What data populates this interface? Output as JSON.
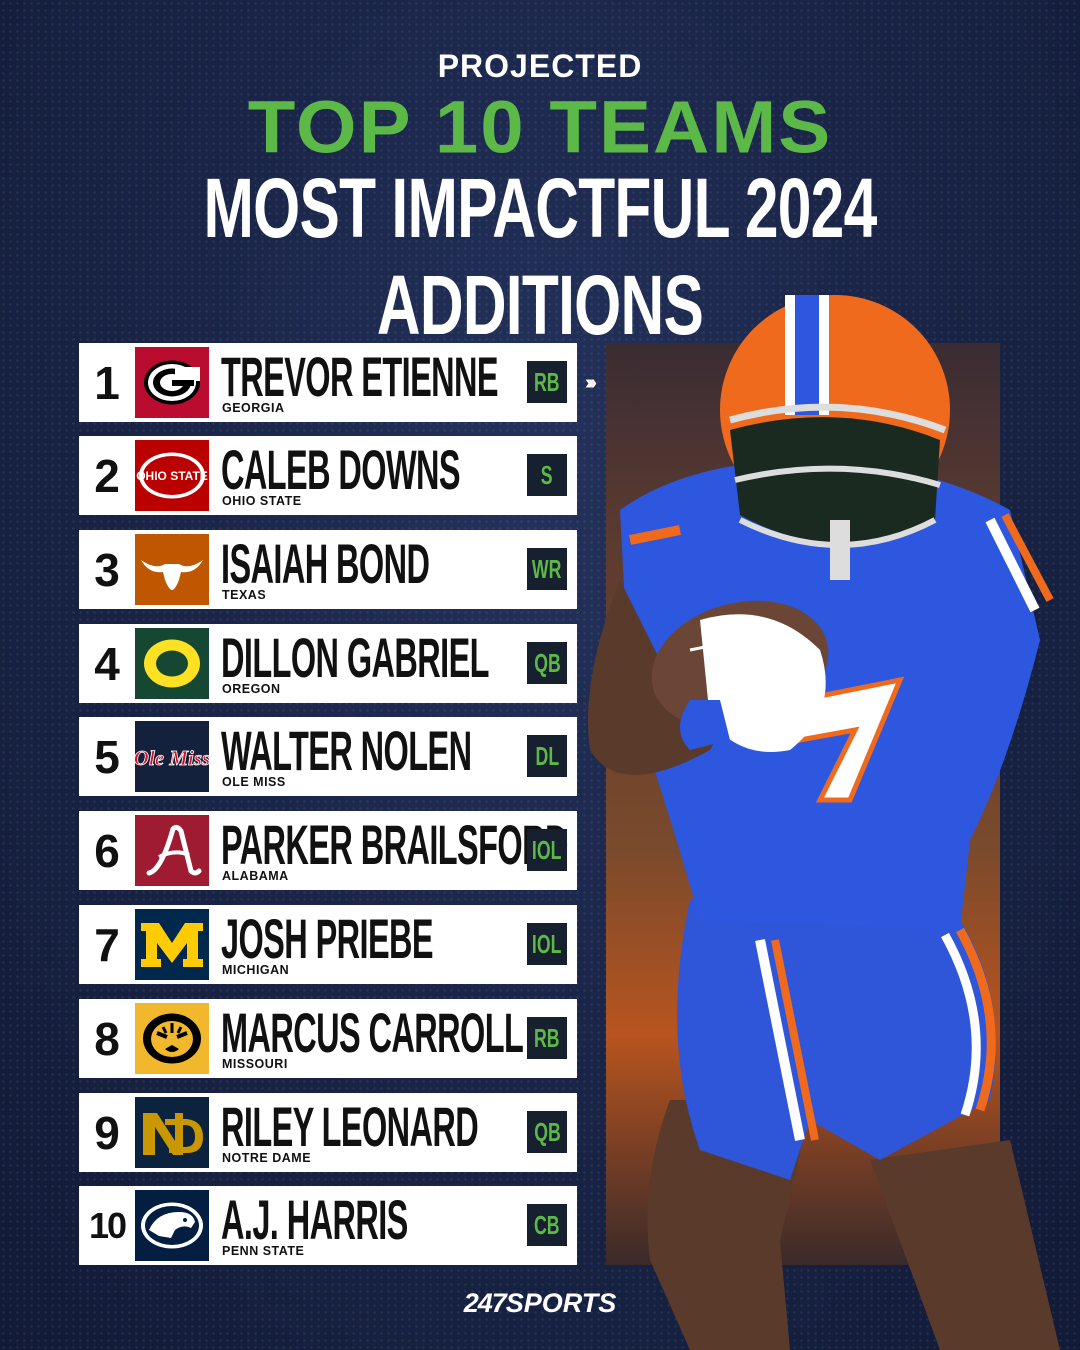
{
  "header": {
    "line1": "PROJECTED",
    "line2": "TOP 10 TEAMS",
    "line3": "MOST IMPACTFUL 2024 ADDITIONS"
  },
  "colors": {
    "accent_green": "#5cb947",
    "background_navy": "#1a2548"
  },
  "rows": [
    {
      "rank": "1",
      "name": "TREVOR ETIENNE",
      "school": "GEORGIA",
      "position": "RB",
      "logo_icon": "georgia-g-logo"
    },
    {
      "rank": "2",
      "name": "CALEB DOWNS",
      "school": "OHIO STATE",
      "position": "S",
      "logo_icon": "ohio-state-logo",
      "logo_text": "OHIO STATE"
    },
    {
      "rank": "3",
      "name": "ISAIAH BOND",
      "school": "TEXAS",
      "position": "WR",
      "logo_icon": "longhorn-logo"
    },
    {
      "rank": "4",
      "name": "DILLON GABRIEL",
      "school": "OREGON",
      "position": "QB",
      "logo_icon": "oregon-o-logo"
    },
    {
      "rank": "5",
      "name": "WALTER NOLEN",
      "school": "OLE MISS",
      "position": "DL",
      "logo_icon": "ole-miss-logo",
      "logo_text": "Ole Miss"
    },
    {
      "rank": "6",
      "name": "PARKER BRAILSFORD",
      "school": "ALABAMA",
      "position": "IOL",
      "logo_icon": "alabama-a-logo"
    },
    {
      "rank": "7",
      "name": "JOSH PRIEBE",
      "school": "MICHIGAN",
      "position": "IOL",
      "logo_icon": "michigan-m-logo"
    },
    {
      "rank": "8",
      "name": "MARCUS CARROLL",
      "school": "MISSOURI",
      "position": "RB",
      "logo_icon": "missouri-tiger-logo"
    },
    {
      "rank": "9",
      "name": "RILEY LEONARD",
      "school": "NOTRE DAME",
      "position": "QB",
      "logo_icon": "notre-dame-nd-logo"
    },
    {
      "rank": "10",
      "name": "A.J. HARRIS",
      "school": "PENN STATE",
      "position": "CB",
      "logo_icon": "penn-state-lion-logo"
    }
  ],
  "photo": {
    "subject": "florida-gators-player",
    "jersey_number": "7"
  },
  "brand": {
    "number": "247",
    "name": "SPORTS"
  }
}
